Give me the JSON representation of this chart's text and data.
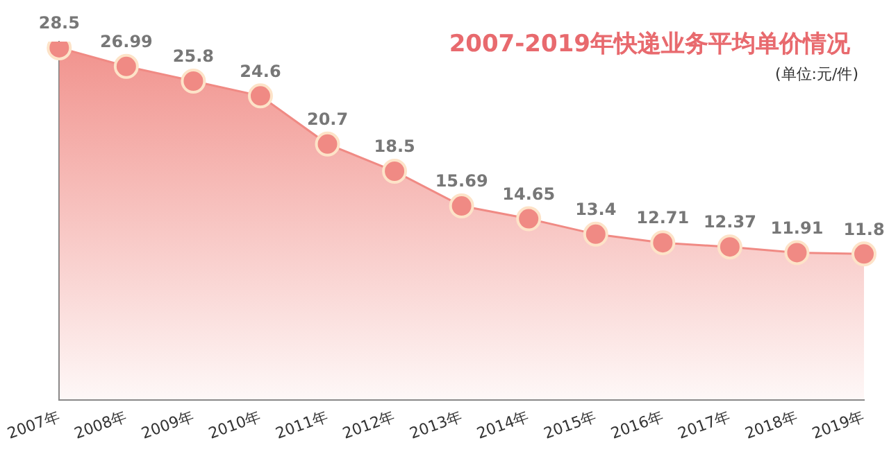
{
  "chart_data": {
    "type": "area",
    "title": "2007-2019年快递业务平均单价情况",
    "subtitle": "(单位:元/件)",
    "categories": [
      "2007年",
      "2008年",
      "2009年",
      "2010年",
      "2011年",
      "2012年",
      "2013年",
      "2014年",
      "2015年",
      "2016年",
      "2017年",
      "2018年",
      "2019年"
    ],
    "series": [
      {
        "color": "#f08a84",
        "values": [
          28.5,
          26.99,
          25.8,
          24.6,
          20.7,
          18.5,
          15.69,
          14.65,
          13.4,
          12.71,
          12.37,
          11.91,
          11.8
        ]
      }
    ],
    "ylim": [
      0,
      29
    ],
    "data_labels": true,
    "marker": "circle",
    "grid": false,
    "legend": false
  }
}
